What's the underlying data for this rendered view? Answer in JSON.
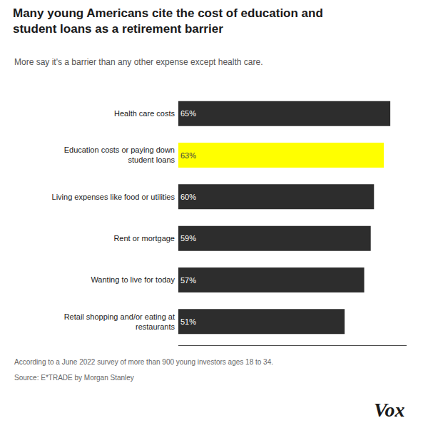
{
  "chart_data": {
    "type": "bar",
    "orientation": "horizontal",
    "title": "Many young Americans cite the cost of education and\nstudent loans as a retirement barrier",
    "subtitle": "More say it's a barrier than any other expense except health care.",
    "categories": [
      "Health care costs",
      "Education costs or paying down\nstudent loans",
      "Living expenses like food or utilities",
      "Rent or mortgage",
      "Wanting to live for today",
      "Retail shopping and/or eating at\nrestaurants"
    ],
    "values": [
      65,
      63,
      60,
      59,
      57,
      51
    ],
    "value_labels": [
      "65%",
      "63%",
      "60%",
      "59%",
      "57%",
      "51%"
    ],
    "colors": [
      "#2d2d2d",
      "#ffff00",
      "#2d2d2d",
      "#2d2d2d",
      "#2d2d2d",
      "#2d2d2d"
    ],
    "xlim": [
      0,
      70
    ],
    "grid": false,
    "data_labels": true,
    "tick_labels": "y",
    "annotations": [
      "According to a June 2022 survey of more than 900 young investors ages 18 to 34.",
      "Source: E*TRADE by Morgan Stanley",
      "Vox"
    ]
  }
}
